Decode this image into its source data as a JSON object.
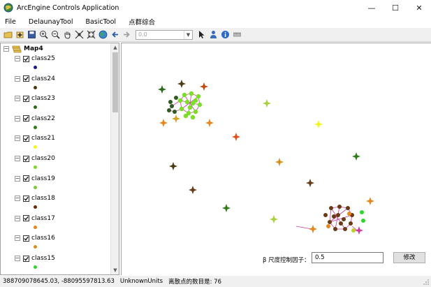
{
  "window": {
    "title": "ArcEngine Controls Application",
    "minimize": "—",
    "maximize": "☐",
    "close": "✕"
  },
  "menu": [
    "File",
    "DelaunayTool",
    "BasicTool",
    "点群综合"
  ],
  "toolbar": {
    "combo_value": "0.0",
    "buttons": [
      "open-icon",
      "add-data-icon",
      "save-icon",
      "zoom-in-icon",
      "zoom-out-icon",
      "pan-icon",
      "full-extent-icon",
      "fixed-extent-icon",
      "globe-icon",
      "back-icon",
      "forward-icon",
      "select-arrow-icon",
      "identify-icon",
      "info-icon",
      "measure-icon"
    ]
  },
  "toc": {
    "root": "Map4",
    "layers": [
      {
        "name": "class25",
        "color": "#1a1a8c"
      },
      {
        "name": "class24",
        "color": "#4a3a10"
      },
      {
        "name": "class23",
        "color": "#2a6a1a"
      },
      {
        "name": "class22",
        "color": "#2f7d18"
      },
      {
        "name": "class21",
        "color": "#f5f51e"
      },
      {
        "name": "class20",
        "color": "#7cd82a"
      },
      {
        "name": "class19",
        "color": "#7cc93a"
      },
      {
        "name": "class18",
        "color": "#6a2a0a"
      },
      {
        "name": "class17",
        "color": "#e8861a"
      },
      {
        "name": "class16",
        "color": "#d8901a"
      },
      {
        "name": "class15",
        "color": "#2dd82d"
      }
    ]
  },
  "factor": {
    "label": "β 尺度控制因子：",
    "value": "0.5",
    "button": "修改"
  },
  "status": {
    "coords": "388709078645.03, -88095597813.63",
    "units": "UnknownUnits",
    "count_text": "离散点的数目是:  76"
  }
}
